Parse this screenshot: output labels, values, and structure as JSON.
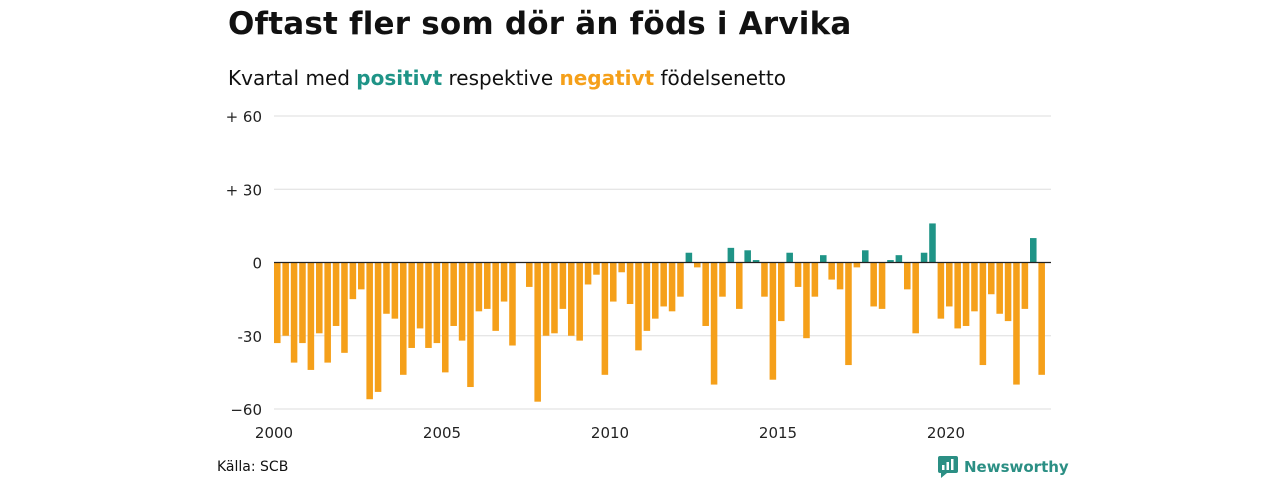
{
  "title": "Oftast fler som dör än föds i Arvika",
  "subtitle": {
    "prefix": "Kvartal med",
    "positive_word": "positivt",
    "middle": "respektive",
    "negative_word": "negativt",
    "suffix": "födelsenetto"
  },
  "colors": {
    "positive": "#1f9487",
    "negative": "#f5a01a",
    "grid": "#dddddd",
    "zero_line": "#222222"
  },
  "source": "Källa: SCB",
  "brand": {
    "name": "Newsworthy",
    "icon": "newsworthy-logo-icon"
  },
  "chart_data": {
    "type": "bar",
    "title": "Oftast fler som dör än föds i Arvika",
    "ylabel": "",
    "xlabel": "",
    "ylim": [
      -60,
      60
    ],
    "yticks": [
      {
        "value": 60,
        "label": "+ 60"
      },
      {
        "value": 30,
        "label": "+ 30"
      },
      {
        "value": 0,
        "label": "0"
      },
      {
        "value": -30,
        "label": "-30"
      },
      {
        "value": -60,
        "label": "−60"
      }
    ],
    "xticks": [
      "2000",
      "2005",
      "2010",
      "2015",
      "2020"
    ],
    "first_year": 2000,
    "grid": true,
    "categories": [
      "2000 K1",
      "2000 K2",
      "2000 K3",
      "2000 K4",
      "2001 K1",
      "2001 K2",
      "2001 K3",
      "2001 K4",
      "2002 K1",
      "2002 K2",
      "2002 K3",
      "2002 K4",
      "2003 K1",
      "2003 K2",
      "2003 K3",
      "2003 K4",
      "2004 K1",
      "2004 K2",
      "2004 K3",
      "2004 K4",
      "2005 K1",
      "2005 K2",
      "2005 K3",
      "2005 K4",
      "2006 K1",
      "2006 K2",
      "2006 K3",
      "2006 K4",
      "2007 K1",
      "2007 K2",
      "2007 K3",
      "2007 K4",
      "2008 K1",
      "2008 K2",
      "2008 K3",
      "2008 K4",
      "2009 K1",
      "2009 K2",
      "2009 K3",
      "2009 K4",
      "2010 K1",
      "2010 K2",
      "2010 K3",
      "2010 K4",
      "2011 K1",
      "2011 K2",
      "2011 K3",
      "2011 K4",
      "2012 K1",
      "2012 K2",
      "2012 K3",
      "2012 K4",
      "2013 K1",
      "2013 K2",
      "2013 K3",
      "2013 K4",
      "2014 K1",
      "2014 K2",
      "2014 K3",
      "2014 K4",
      "2015 K1",
      "2015 K2",
      "2015 K3",
      "2015 K4",
      "2016 K1",
      "2016 K2",
      "2016 K3",
      "2016 K4",
      "2017 K1",
      "2017 K2",
      "2017 K3",
      "2017 K4",
      "2018 K1",
      "2018 K2",
      "2018 K3",
      "2018 K4",
      "2019 K1",
      "2019 K2",
      "2019 K3",
      "2019 K4",
      "2020 K1",
      "2020 K2",
      "2020 K3",
      "2020 K4",
      "2021 K1",
      "2021 K2",
      "2021 K3",
      "2021 K4",
      "2022 K1",
      "2022 K2",
      "2022 K3",
      "2022 K4",
      "2023 K1"
    ],
    "values": [
      -33,
      -30,
      -41,
      -33,
      -44,
      -29,
      -41,
      -26,
      -37,
      -15,
      -11,
      -56,
      -53,
      -21,
      -23,
      -46,
      -35,
      -27,
      -35,
      -33,
      -45,
      -26,
      -32,
      -51,
      -20,
      -19,
      -28,
      -16,
      -34,
      0,
      -10,
      -57,
      -30,
      -29,
      -19,
      -30,
      -32,
      -9,
      -5,
      -46,
      -16,
      -4,
      -17,
      -36,
      -28,
      -23,
      -18,
      -20,
      -14,
      4,
      -2,
      -26,
      -50,
      -14,
      6,
      -19,
      5,
      1,
      -14,
      -48,
      -24,
      4,
      -10,
      -31,
      -14,
      3,
      -7,
      -11,
      -42,
      -2,
      5,
      -18,
      -19,
      1,
      3,
      -11,
      -29,
      4,
      16,
      -23,
      -18,
      -27,
      -26,
      -20,
      -42,
      -13,
      -21,
      -24,
      -50,
      -19,
      10,
      -46,
      0
    ]
  }
}
